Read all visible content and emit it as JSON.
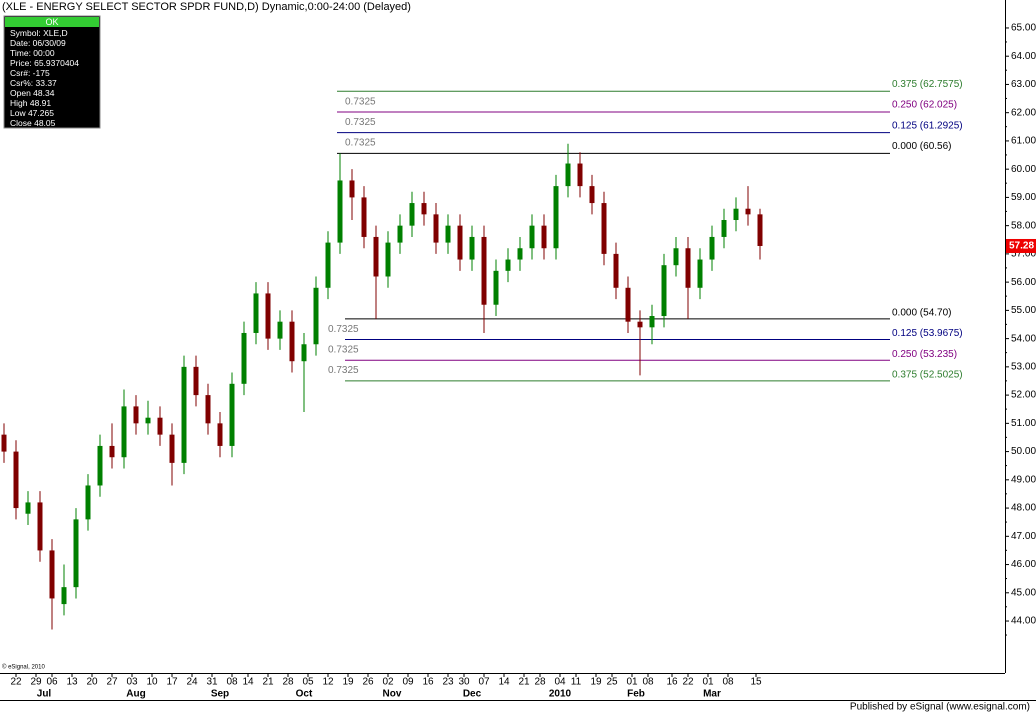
{
  "chart_data": {
    "type": "candlestick",
    "title": "(XLE - ENERGY SELECT SECTOR SPDR FUND,D) Dynamic,0:00-24:00 (Delayed)",
    "x": [
      0,
      3,
      6,
      9,
      12,
      15,
      18,
      21,
      24,
      27,
      30,
      33,
      36,
      39,
      42,
      45,
      48,
      51,
      54,
      57,
      60,
      63,
      66,
      69,
      72,
      75,
      78,
      81,
      84,
      87,
      90,
      93,
      96,
      99,
      102,
      105,
      108,
      111,
      114,
      117,
      120,
      123,
      126,
      129,
      132,
      135,
      138,
      141,
      144,
      147,
      150,
      153,
      156,
      159,
      162,
      165,
      168,
      171,
      174,
      177,
      180,
      183,
      186,
      189
    ],
    "open": [
      50.6,
      50.0,
      47.8,
      48.2,
      46.5,
      44.6,
      45.2,
      47.6,
      48.8,
      50.2,
      49.8,
      51.6,
      51.0,
      51.2,
      50.6,
      49.6,
      53.0,
      52.0,
      51.0,
      50.2,
      52.4,
      54.2,
      55.6,
      54.0,
      54.6,
      53.2,
      53.8,
      55.8,
      57.4,
      59.6,
      59.0,
      57.6,
      56.2,
      57.4,
      58.0,
      58.8,
      58.4,
      57.4,
      58.0,
      56.8,
      57.6,
      55.2,
      56.4,
      56.8,
      57.2,
      58.0,
      57.2,
      59.4,
      60.2,
      59.4,
      58.8,
      57.0,
      55.8,
      54.6,
      54.4,
      54.8,
      56.6,
      57.2,
      55.8,
      56.8,
      57.6,
      58.2,
      58.6,
      58.4
    ],
    "high": [
      51.0,
      50.4,
      48.6,
      48.6,
      46.9,
      46.0,
      48.0,
      49.2,
      50.6,
      51.0,
      52.2,
      52.0,
      51.8,
      51.6,
      51.0,
      53.4,
      53.4,
      52.4,
      51.4,
      52.8,
      54.6,
      56.0,
      56.0,
      55.0,
      55.0,
      54.2,
      56.2,
      57.8,
      60.56,
      60.0,
      59.4,
      58.0,
      57.8,
      58.4,
      59.2,
      59.2,
      58.8,
      58.4,
      58.4,
      58.0,
      58.0,
      56.8,
      57.2,
      57.6,
      58.4,
      58.4,
      59.8,
      60.9,
      60.6,
      59.8,
      59.2,
      57.4,
      56.2,
      55.0,
      55.2,
      57.0,
      57.6,
      57.6,
      57.2,
      58.0,
      58.6,
      59.0,
      59.4,
      58.6
    ],
    "low": [
      49.6,
      47.6,
      47.4,
      46.1,
      43.7,
      44.2,
      44.8,
      47.2,
      48.4,
      49.4,
      49.4,
      50.6,
      50.6,
      50.2,
      48.8,
      49.2,
      51.6,
      50.6,
      49.8,
      49.8,
      52.0,
      53.8,
      53.6,
      53.6,
      52.8,
      51.4,
      53.4,
      55.4,
      57.0,
      58.2,
      57.2,
      54.7,
      55.8,
      57.0,
      57.6,
      58.0,
      57.0,
      57.0,
      56.4,
      56.4,
      54.2,
      54.8,
      56.0,
      56.4,
      56.8,
      56.8,
      56.8,
      59.0,
      59.0,
      58.4,
      56.6,
      55.4,
      54.2,
      52.7,
      53.8,
      54.4,
      56.2,
      54.7,
      55.4,
      56.4,
      57.2,
      57.8,
      58.0,
      56.8
    ],
    "close": [
      50.0,
      48.0,
      48.2,
      46.5,
      44.8,
      45.2,
      47.6,
      48.8,
      50.2,
      49.8,
      51.6,
      51.0,
      51.2,
      50.6,
      49.6,
      53.0,
      52.0,
      51.0,
      50.2,
      52.4,
      54.2,
      55.6,
      54.0,
      54.6,
      53.2,
      53.8,
      55.8,
      57.4,
      59.6,
      59.0,
      57.6,
      56.2,
      57.4,
      58.0,
      58.8,
      58.4,
      57.4,
      58.0,
      56.8,
      57.6,
      55.2,
      56.4,
      56.8,
      57.2,
      58.0,
      57.2,
      59.4,
      60.2,
      59.4,
      58.8,
      57.0,
      55.8,
      54.6,
      54.4,
      54.8,
      56.6,
      57.2,
      55.8,
      56.8,
      57.6,
      58.2,
      58.6,
      58.4,
      57.28
    ],
    "colors": {
      "up": "#008000",
      "down": "#800000"
    },
    "xlim": [
      -1,
      250.25
    ],
    "ylim": [
      42.16,
      65.99
    ],
    "yticks": [
      {
        "value": 44,
        "label": "44.00"
      },
      {
        "value": 45,
        "label": "45.00"
      },
      {
        "value": 46,
        "label": "46.00"
      },
      {
        "value": 47,
        "label": "47.00"
      },
      {
        "value": 48,
        "label": "48.00"
      },
      {
        "value": 49,
        "label": "49.00"
      },
      {
        "value": 50,
        "label": "50.00"
      },
      {
        "value": 51,
        "label": "51.00"
      },
      {
        "value": 52,
        "label": "52.00"
      },
      {
        "value": 53,
        "label": "53.00"
      },
      {
        "value": 54,
        "label": "54.00"
      },
      {
        "value": 55,
        "label": "55.00"
      },
      {
        "value": 56,
        "label": "56.00"
      },
      {
        "value": 57,
        "label": "57.00"
      },
      {
        "value": 58,
        "label": "58.00"
      },
      {
        "value": 59,
        "label": "59.00"
      },
      {
        "value": 60,
        "label": "60.00"
      },
      {
        "value": 61,
        "label": "61.00"
      },
      {
        "value": 62,
        "label": "62.00"
      },
      {
        "value": 63,
        "label": "63.00"
      },
      {
        "value": 64,
        "label": "64.00"
      },
      {
        "value": 65,
        "label": "65.00"
      }
    ],
    "xticks": [
      {
        "value": 3,
        "label": "22"
      },
      {
        "value": 8,
        "label": "29"
      },
      {
        "value": 12,
        "label": "06"
      },
      {
        "value": 17,
        "label": "13"
      },
      {
        "value": 22,
        "label": "20"
      },
      {
        "value": 27,
        "label": "27"
      },
      {
        "value": 32,
        "label": "03"
      },
      {
        "value": 37,
        "label": "10"
      },
      {
        "value": 42,
        "label": "17"
      },
      {
        "value": 47,
        "label": "24"
      },
      {
        "value": 52,
        "label": "31"
      },
      {
        "value": 57,
        "label": "08"
      },
      {
        "value": 61,
        "label": "14"
      },
      {
        "value": 66,
        "label": "21"
      },
      {
        "value": 71,
        "label": "28"
      },
      {
        "value": 76,
        "label": "05"
      },
      {
        "value": 81,
        "label": "12"
      },
      {
        "value": 86,
        "label": "19"
      },
      {
        "value": 91,
        "label": "26"
      },
      {
        "value": 96,
        "label": "02"
      },
      {
        "value": 101,
        "label": "09"
      },
      {
        "value": 106,
        "label": "16"
      },
      {
        "value": 111,
        "label": "23"
      },
      {
        "value": 115,
        "label": "30"
      },
      {
        "value": 120,
        "label": "07"
      },
      {
        "value": 125,
        "label": "14"
      },
      {
        "value": 130,
        "label": "21"
      },
      {
        "value": 134,
        "label": "28"
      },
      {
        "value": 139,
        "label": "04"
      },
      {
        "value": 143,
        "label": "11"
      },
      {
        "value": 148,
        "label": "19"
      },
      {
        "value": 152,
        "label": "25"
      },
      {
        "value": 157,
        "label": "01"
      },
      {
        "value": 161,
        "label": "08"
      },
      {
        "value": 167,
        "label": "16"
      },
      {
        "value": 171,
        "label": "22"
      },
      {
        "value": 176,
        "label": "01"
      },
      {
        "value": 181,
        "label": "08"
      },
      {
        "value": 188,
        "label": "15"
      }
    ],
    "month_ticks": [
      {
        "value": 10,
        "label": "Jul"
      },
      {
        "value": 33,
        "label": "Aug"
      },
      {
        "value": 54,
        "label": "Sep"
      },
      {
        "value": 75,
        "label": "Oct"
      },
      {
        "value": 97,
        "label": "Nov"
      },
      {
        "value": 117,
        "label": "Dec"
      },
      {
        "value": 139,
        "label": "2010"
      },
      {
        "value": 158,
        "label": "Feb"
      },
      {
        "value": 177,
        "label": "Mar"
      }
    ],
    "fib_upper": {
      "levels": [
        60.56,
        61.2925,
        62.025,
        62.7575
      ],
      "labels": [
        "0.000 (60.56)",
        "0.125 (61.2925)",
        "0.250 (62.025)",
        "0.375 (62.7575)"
      ],
      "colors": [
        "#000000",
        "#000080",
        "#800080",
        "#2e7d2e"
      ],
      "ratio_labels": [
        "0.7325",
        "0.7325",
        "0.7325"
      ]
    },
    "fib_lower": {
      "levels": [
        54.7,
        53.9675,
        53.235,
        52.5025
      ],
      "labels": [
        "0.000 (54.70)",
        "0.125 (53.9675)",
        "0.250 (53.235)",
        "0.375 (52.5025)"
      ],
      "colors": [
        "#000000",
        "#000080",
        "#800080",
        "#2e7d2e"
      ],
      "ratio_labels": [
        "0.7325",
        "0.7325",
        "0.7325"
      ]
    }
  },
  "info_box": {
    "header": "OK",
    "rows": [
      "Symbol: XLE,D",
      "Date: 06/30/09",
      "Time: 00:00",
      "Price: 65.9370404",
      "Csr#: -175",
      "Csr%: 33.37",
      "Open 48.34",
      "High 48.91",
      "Low 47.265",
      "Close 48.05"
    ]
  },
  "footer": {
    "copyright": "© eSignal, 2010",
    "published": "Published by eSignal (www.esignal.com)"
  }
}
